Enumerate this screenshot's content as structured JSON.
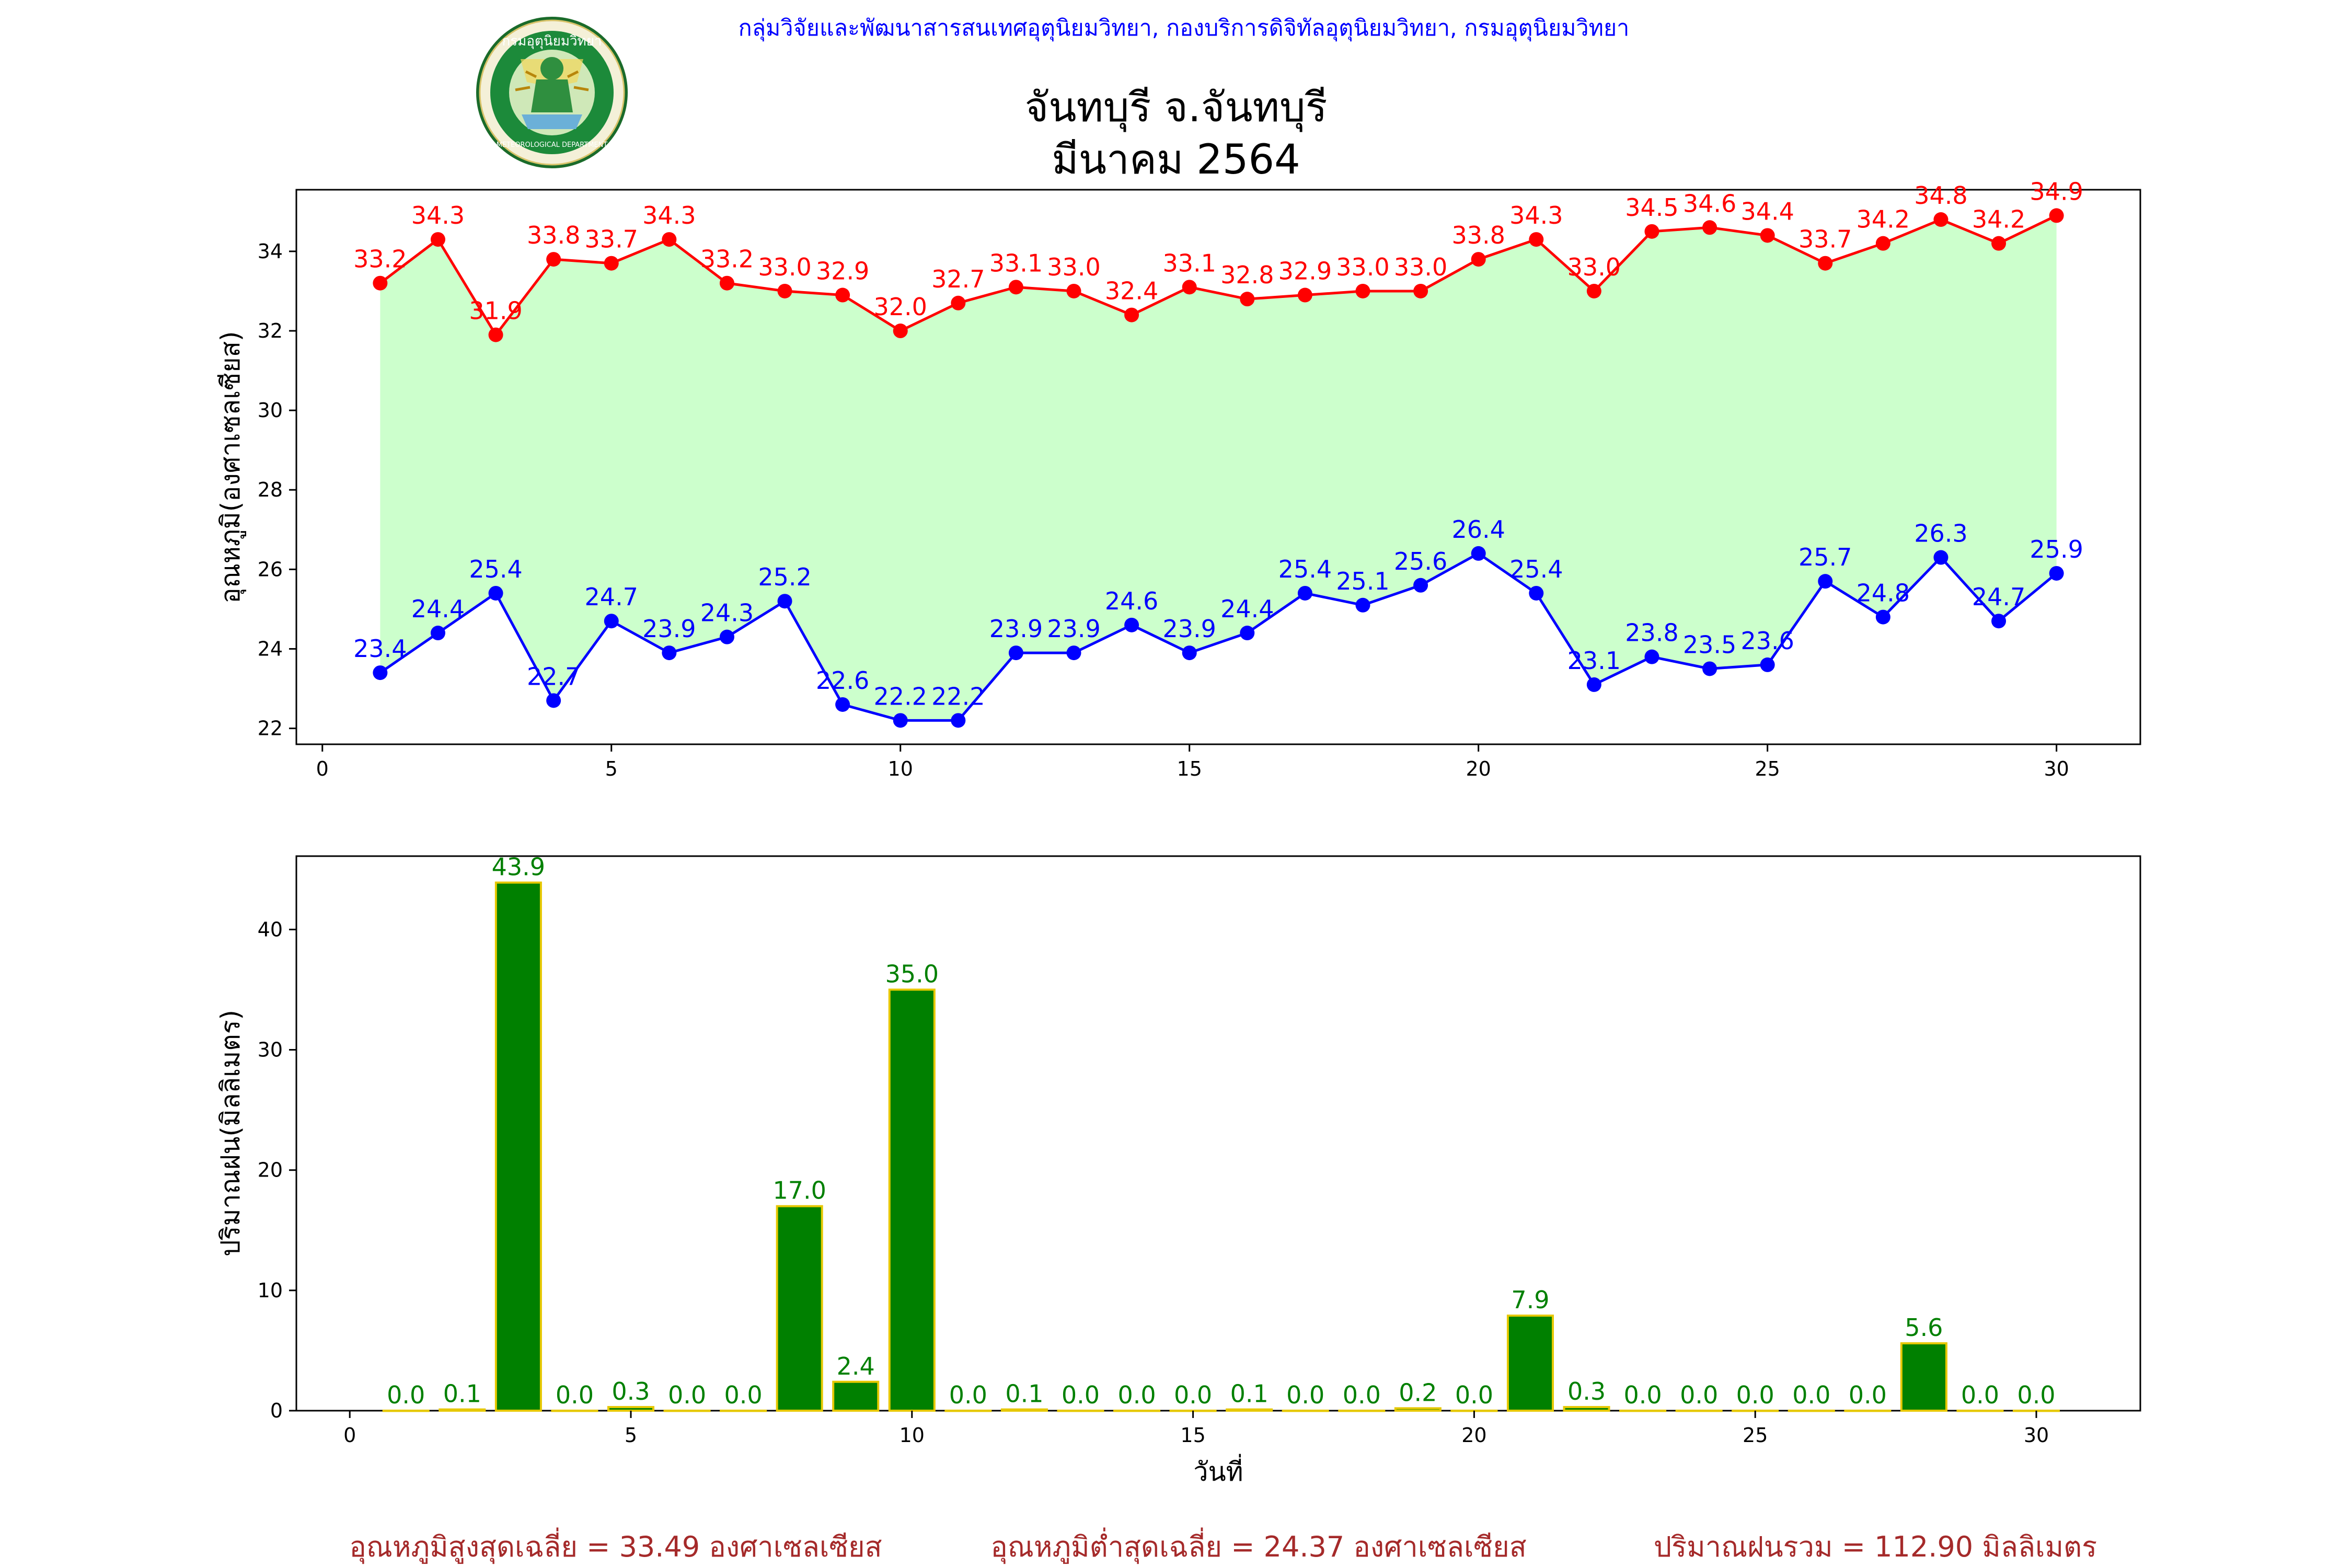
{
  "header": {
    "agency": "กลุ่มวิจัยและพัฒนาสารสนเทศอุตุนิยมวิทยา, กองบริการดิจิทัลอุตุนิยมวิทยา, กรมอุตุนิยมวิทยา",
    "logo_text": "กรมอุตุนิยมวิทยา",
    "logo_subtext": "METEOROLOGICAL DEPARTMENT",
    "title_line1": "จันทบุรี จ.จันทบุรี",
    "title_line2": "มีนาคม 2564"
  },
  "colors": {
    "max_line": "#ff0000",
    "min_line": "#0000ff",
    "fill": "#ccffcc",
    "bar_fill": "#008000",
    "bar_edge": "#e6c800",
    "rain_label": "#008000",
    "summary_text": "#a52a2a",
    "header_text": "#0000ff"
  },
  "chart_data": [
    {
      "type": "line",
      "ylabel": "อุณหภูมิ(องศาเซลเซียส)",
      "xlabel": "",
      "x": [
        1,
        2,
        3,
        4,
        5,
        6,
        7,
        8,
        9,
        10,
        11,
        12,
        13,
        14,
        15,
        16,
        17,
        18,
        19,
        20,
        21,
        22,
        23,
        24,
        25,
        26,
        27,
        28,
        29,
        30
      ],
      "xlim": [
        -0.45,
        31.45
      ],
      "ylim": [
        21.6,
        35.55
      ],
      "xticks": [
        0,
        5,
        10,
        15,
        20,
        25,
        30
      ],
      "yticks": [
        22,
        24,
        26,
        28,
        30,
        32,
        34
      ],
      "grid": false,
      "series": [
        {
          "key": "max",
          "values": [
            33.2,
            34.3,
            31.9,
            33.8,
            33.7,
            34.3,
            33.2,
            33.0,
            32.9,
            32.0,
            32.7,
            33.1,
            33.0,
            32.4,
            33.1,
            32.8,
            32.9,
            33.0,
            33.0,
            33.8,
            34.3,
            33.0,
            34.5,
            34.6,
            34.4,
            33.7,
            34.2,
            34.8,
            34.2,
            34.9
          ]
        },
        {
          "key": "min",
          "values": [
            23.4,
            24.4,
            25.4,
            22.7,
            24.7,
            23.9,
            24.3,
            25.2,
            22.6,
            22.2,
            22.2,
            23.9,
            23.9,
            24.6,
            23.9,
            24.4,
            25.4,
            25.1,
            25.6,
            26.4,
            25.4,
            23.1,
            23.8,
            23.5,
            23.6,
            25.7,
            24.8,
            26.3,
            24.7,
            25.9
          ]
        }
      ]
    },
    {
      "type": "bar",
      "ylabel": "ปริมาณฝน(มิลลิเมตร)",
      "xlabel": "วันที่",
      "x": [
        1,
        2,
        3,
        4,
        5,
        6,
        7,
        8,
        9,
        10,
        11,
        12,
        13,
        14,
        15,
        16,
        17,
        18,
        19,
        20,
        21,
        22,
        23,
        24,
        25,
        26,
        27,
        28,
        29,
        30
      ],
      "values": [
        0.0,
        0.1,
        43.9,
        0.0,
        0.3,
        0.0,
        0.0,
        17.0,
        2.4,
        35.0,
        0.0,
        0.1,
        0.0,
        0.0,
        0.0,
        0.1,
        0.0,
        0.0,
        0.2,
        0.0,
        7.9,
        0.3,
        0.0,
        0.0,
        0.0,
        0.0,
        0.0,
        5.6,
        0.0,
        0.0
      ],
      "xlim": [
        -0.95,
        31.85
      ],
      "ylim": [
        0,
        46.1
      ],
      "xticks": [
        0,
        5,
        10,
        15,
        20,
        25,
        30
      ],
      "yticks": [
        0,
        10,
        20,
        30,
        40
      ],
      "grid": false
    }
  ],
  "summary": {
    "avg_max": "อุณหภูมิสูงสุดเฉลี่ย = 33.49 องศาเซลเซียส",
    "avg_min": "อุณหภูมิต่ำสุดเฉลี่ย = 24.37 องศาเซลเซียส",
    "total_rain": "ปริมาณฝนรวม = 112.90 มิลลิเมตร"
  }
}
